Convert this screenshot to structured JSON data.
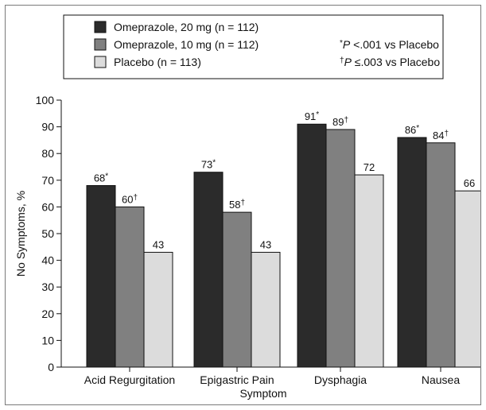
{
  "chart_data": {
    "type": "bar",
    "title": "",
    "xlabel": "Symptom",
    "ylabel": "No Symptoms, %",
    "ylim": [
      0,
      100
    ],
    "yticks": [
      0,
      10,
      20,
      30,
      40,
      50,
      60,
      70,
      80,
      90,
      100
    ],
    "grid": false,
    "legend_position": "top",
    "categories": [
      "Acid Regurgitation",
      "Epigastric Pain",
      "Dysphagia",
      "Nausea"
    ],
    "series": [
      {
        "name": "Omeprazole, 20 mg (n = 112)",
        "color": "#2b2b2b",
        "values": [
          68,
          73,
          91,
          86
        ],
        "labels": [
          "68",
          "73",
          "91",
          "86"
        ],
        "marks": [
          "*",
          "*",
          "*",
          "*"
        ]
      },
      {
        "name": "Omeprazole, 10 mg (n = 112)",
        "color": "#808080",
        "values": [
          60,
          58,
          89,
          84
        ],
        "labels": [
          "60",
          "58",
          "89",
          "84"
        ],
        "marks": [
          "†",
          "†",
          "†",
          "†"
        ]
      },
      {
        "name": "Placebo (n = 113)",
        "color": "#dcdcdc",
        "values": [
          43,
          43,
          72,
          66
        ],
        "labels": [
          "43",
          "43",
          "72",
          "66"
        ],
        "marks": [
          "",
          "",
          "",
          ""
        ]
      }
    ],
    "footnotes": [
      {
        "symbol": "*",
        "prefix": "P",
        "text": " <.001 vs Placebo"
      },
      {
        "symbol": "†",
        "prefix": "P",
        "text": " ≤.003 vs Placebo"
      }
    ]
  }
}
